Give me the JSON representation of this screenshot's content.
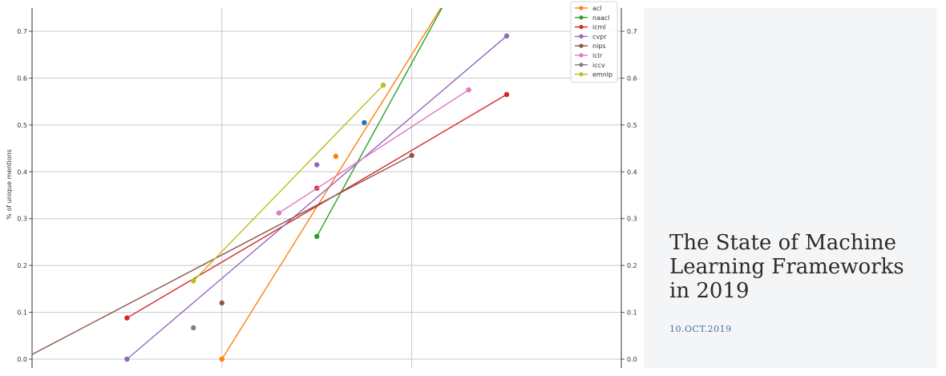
{
  "article": {
    "title": "The State of Machine Learning Frameworks in 2019",
    "date": "10.OCT.2019"
  },
  "chart_data": {
    "type": "line",
    "ylabel": "% of unique mentions",
    "ylim": [
      -0.02,
      0.77
    ],
    "yticks": [
      "0.0",
      "0.1",
      "0.2",
      "0.3",
      "0.4",
      "0.5",
      "0.6",
      "0.7"
    ],
    "grid": true,
    "legend_position": "top-right",
    "series": [
      {
        "name": "acl",
        "color": "#ff7f0e",
        "points": [
          [
            2018.0,
            0.0
          ],
          [
            2018.6,
            0.433
          ]
        ],
        "trend": [
          [
            2018.0,
            0.0
          ],
          [
            2019.2,
            0.78
          ]
        ]
      },
      {
        "name": "naacl",
        "color": "#2ca02c",
        "points": [
          [
            2018.5,
            0.262
          ]
        ],
        "trend": [
          [
            2018.5,
            0.262
          ],
          [
            2019.2,
            0.78
          ]
        ]
      },
      {
        "name": "icml",
        "color": "#d62728",
        "points": [
          [
            2017.5,
            0.088
          ],
          [
            2018.5,
            0.365
          ],
          [
            2019.5,
            0.565
          ]
        ],
        "trend": [
          [
            2017.5,
            0.088
          ],
          [
            2019.5,
            0.565
          ]
        ]
      },
      {
        "name": "cvpr",
        "color": "#9467bd",
        "points": [
          [
            2017.5,
            0.0
          ],
          [
            2018.5,
            0.415
          ],
          [
            2019.5,
            0.69
          ]
        ],
        "trend": [
          [
            2017.5,
            0.0
          ],
          [
            2019.5,
            0.69
          ]
        ]
      },
      {
        "name": "nips",
        "color": "#8c564b",
        "points": [
          [
            2018.0,
            0.12
          ],
          [
            2019.0,
            0.435
          ]
        ],
        "trend": [
          [
            2017.0,
            0.01
          ],
          [
            2019.0,
            0.435
          ]
        ]
      },
      {
        "name": "iclr",
        "color": "#e377c2",
        "points": [
          [
            2018.3,
            0.312
          ],
          [
            2019.3,
            0.575
          ]
        ],
        "trend": [
          [
            2018.3,
            0.312
          ],
          [
            2019.3,
            0.575
          ]
        ]
      },
      {
        "name": "iccv",
        "color": "#7f7f7f",
        "points": [
          [
            2017.85,
            0.067
          ]
        ],
        "trend": []
      },
      {
        "name": "emnlp",
        "color": "#bcbd22",
        "points": [
          [
            2017.85,
            0.167
          ],
          [
            2018.85,
            0.585
          ]
        ],
        "trend": [
          [
            2017.85,
            0.167
          ],
          [
            2018.85,
            0.585
          ]
        ]
      },
      {
        "name": "",
        "color": "#1f77b4",
        "points": [
          [
            2018.75,
            0.505
          ]
        ],
        "trend": []
      }
    ]
  }
}
